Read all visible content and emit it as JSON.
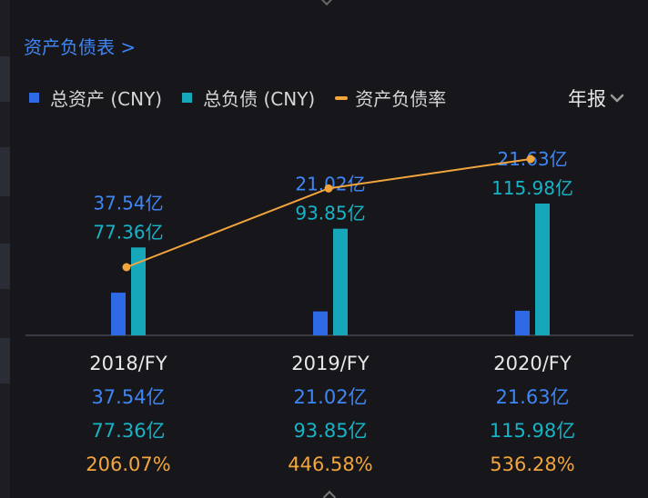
{
  "header": {
    "title": "资产负债表 >",
    "period_label": "年报"
  },
  "legend": [
    {
      "label": "总资产 (CNY)",
      "color": "#2f6ae6",
      "shape": "square"
    },
    {
      "label": "总负债 (CNY)",
      "color": "#17a7bb",
      "shape": "square"
    },
    {
      "label": "资产负债率",
      "color": "#f2a53d",
      "shape": "line"
    }
  ],
  "columns": [
    {
      "category": "2018/FY",
      "assets": "37.54亿",
      "liabilities": "77.36亿",
      "ratio": "206.07%"
    },
    {
      "category": "2019/FY",
      "assets": "21.02亿",
      "liabilities": "93.85亿",
      "ratio": "446.58%"
    },
    {
      "category": "2020/FY",
      "assets": "21.63亿",
      "liabilities": "115.98亿",
      "ratio": "536.28%"
    }
  ],
  "chart_data": {
    "type": "bar",
    "categories": [
      "2018/FY",
      "2019/FY",
      "2020/FY"
    ],
    "series": [
      {
        "name": "总资产 (CNY)",
        "kind": "bar",
        "unit": "亿",
        "values": [
          37.54,
          21.02,
          21.63
        ],
        "color": "#2f6ae6",
        "value_labels": [
          "37.54亿",
          "21.02亿",
          "21.63亿"
        ]
      },
      {
        "name": "总负债 (CNY)",
        "kind": "bar",
        "unit": "亿",
        "values": [
          77.36,
          93.85,
          115.98
        ],
        "color": "#17a7bb",
        "value_labels": [
          "77.36亿",
          "93.85亿",
          "115.98亿"
        ]
      },
      {
        "name": "资产负债率",
        "kind": "line",
        "unit": "%",
        "values": [
          206.07,
          446.58,
          536.28
        ],
        "color": "#f2a53d"
      }
    ],
    "legend_position": "top-left",
    "grid": false
  },
  "colors": {
    "background": "#17171b",
    "accent_blue": "#3f86f5",
    "accent_teal": "#17b3c6",
    "accent_orange": "#f2a53d"
  }
}
